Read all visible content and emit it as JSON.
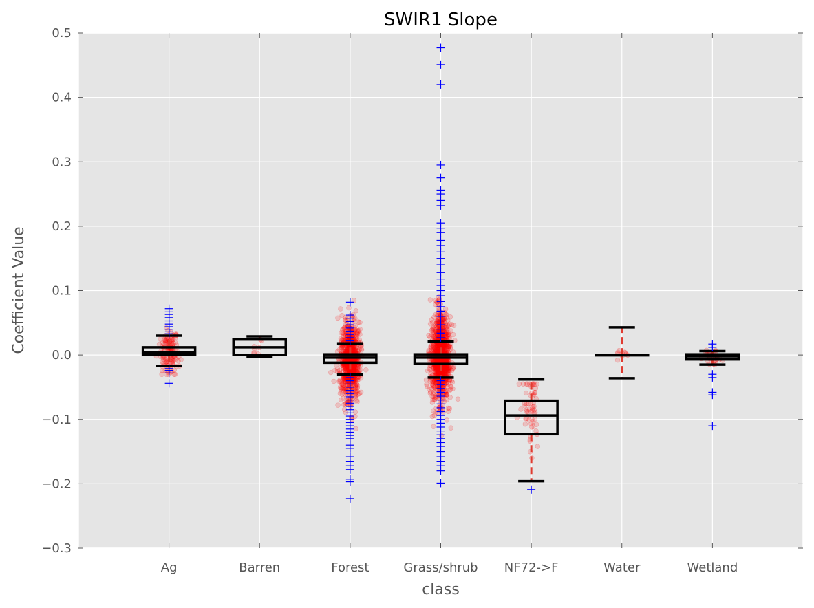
{
  "chart_data": {
    "type": "box",
    "title": "SWIR1 Slope",
    "xlabel": "class",
    "ylabel": "Coefficient Value",
    "ylim": [
      -0.3,
      0.5
    ],
    "yticks": [
      -0.3,
      -0.2,
      -0.1,
      0.0,
      0.1,
      0.2,
      0.3,
      0.4,
      0.5
    ],
    "ytick_labels": [
      "−0.3",
      "−0.2",
      "−0.1",
      "0.0",
      "0.1",
      "0.2",
      "0.3",
      "0.4",
      "0.5"
    ],
    "grid": true,
    "background_color": "#e5e5e5",
    "box_color": "#000000",
    "whisker_color": "#e03c31",
    "jitter_color": "#ff0000",
    "outlier_color": "#0000ff",
    "categories": [
      "Ag",
      "Barren",
      "Forest",
      "Grass/shrub",
      "NF72->F",
      "Water",
      "Wetland"
    ],
    "boxes": [
      {
        "category": "Ag",
        "whisker_low": -0.017,
        "q1": 0.0,
        "median": 0.004,
        "q3": 0.012,
        "whisker_high": 0.03,
        "outliers": [
          -0.044,
          -0.028,
          -0.024,
          -0.021,
          0.033,
          0.036,
          0.04,
          0.044,
          0.048,
          0.053,
          0.058,
          0.063,
          0.067,
          0.072
        ]
      },
      {
        "category": "Barren",
        "whisker_low": -0.003,
        "q1": 0.0,
        "median": 0.012,
        "q3": 0.024,
        "whisker_high": 0.029,
        "outliers": []
      },
      {
        "category": "Forest",
        "whisker_low": -0.03,
        "q1": -0.012,
        "median": -0.004,
        "q3": 0.001,
        "whisker_high": 0.018,
        "outliers": [
          0.082,
          0.062,
          0.057,
          0.052,
          0.047,
          0.042,
          0.037,
          0.032,
          0.027,
          0.022,
          -0.035,
          -0.04,
          -0.045,
          -0.05,
          -0.055,
          -0.06,
          -0.065,
          -0.07,
          -0.075,
          -0.08,
          -0.085,
          -0.09,
          -0.095,
          -0.1,
          -0.105,
          -0.11,
          -0.115,
          -0.12,
          -0.125,
          -0.13,
          -0.14,
          -0.145,
          -0.158,
          -0.165,
          -0.172,
          -0.178,
          -0.193,
          -0.197,
          -0.223
        ]
      },
      {
        "category": "Grass/shrub",
        "whisker_low": -0.035,
        "q1": -0.014,
        "median": -0.004,
        "q3": 0.001,
        "whisker_high": 0.021,
        "outliers": [
          0.477,
          0.451,
          0.42,
          0.295,
          0.275,
          0.256,
          0.25,
          0.24,
          0.232,
          0.205,
          0.197,
          0.19,
          0.178,
          0.17,
          0.16,
          0.15,
          0.14,
          0.128,
          0.118,
          0.108,
          0.1,
          0.092,
          0.083,
          0.075,
          0.068,
          0.06,
          0.053,
          0.047,
          0.04,
          0.034,
          0.027,
          -0.04,
          -0.046,
          -0.052,
          -0.058,
          -0.064,
          -0.07,
          -0.076,
          -0.082,
          -0.088,
          -0.094,
          -0.1,
          -0.106,
          -0.112,
          -0.118,
          -0.124,
          -0.13,
          -0.136,
          -0.142,
          -0.15,
          -0.158,
          -0.165,
          -0.172,
          -0.18,
          -0.199
        ]
      },
      {
        "category": "NF72->F",
        "whisker_low": -0.196,
        "q1": -0.123,
        "median": -0.094,
        "q3": -0.071,
        "whisker_high": -0.038,
        "outliers": [
          -0.209
        ]
      },
      {
        "category": "Water",
        "whisker_low": -0.036,
        "q1": 0.0,
        "median": 0.0,
        "q3": 0.0,
        "whisker_high": 0.043,
        "outliers": []
      },
      {
        "category": "Wetland",
        "whisker_low": -0.015,
        "q1": -0.007,
        "median": -0.002,
        "q3": 0.001,
        "whisker_high": 0.006,
        "outliers": [
          0.017,
          0.012,
          -0.03,
          -0.035,
          -0.058,
          -0.062,
          -0.11
        ]
      }
    ],
    "jitter_points": [
      {
        "category": "Ag",
        "count": 140,
        "min": -0.03,
        "max": 0.07,
        "center": 0.004,
        "spread": 0.018
      },
      {
        "category": "Barren",
        "count": 8,
        "min": -0.003,
        "max": 0.029,
        "center": 0.012,
        "spread": 0.01
      },
      {
        "category": "Forest",
        "count": 900,
        "min": -0.2,
        "max": 0.085,
        "center": -0.01,
        "spread": 0.03
      },
      {
        "category": "Grass/shrub",
        "count": 1100,
        "min": -0.19,
        "max": 0.2,
        "center": -0.005,
        "spread": 0.032
      },
      {
        "category": "NF72->F",
        "count": 60,
        "min": -0.2,
        "max": -0.045,
        "center": -0.09,
        "spread": 0.035
      },
      {
        "category": "Water",
        "count": 10,
        "min": -0.01,
        "max": 0.01,
        "center": 0.0,
        "spread": 0.004
      },
      {
        "category": "Wetland",
        "count": 30,
        "min": -0.06,
        "max": 0.015,
        "center": -0.003,
        "spread": 0.008
      }
    ]
  }
}
